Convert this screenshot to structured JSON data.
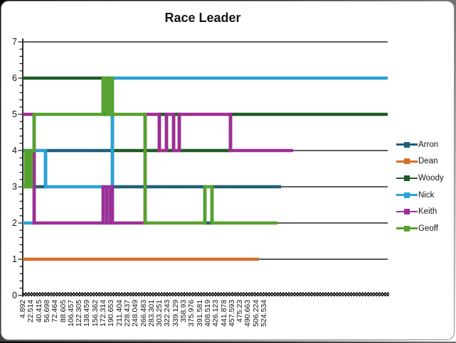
{
  "chart_data": {
    "type": "line",
    "title": "Race Leader",
    "xlabel": "",
    "ylabel": "",
    "ylim": [
      0,
      7
    ],
    "y_ticks": [
      0,
      1,
      2,
      3,
      4,
      5,
      6,
      7
    ],
    "grid": false,
    "legend_position": "right",
    "x_tick_labels": [
      "4.892",
      "22.514",
      "40.415",
      "56.698",
      "72.464",
      "88.605",
      "106.457",
      "122.305",
      "138.459",
      "156.362",
      "172.314",
      "190.653",
      "211.404",
      "228.437",
      "248.049",
      "266.483",
      "283.301",
      "303.251",
      "322.243",
      "339.129",
      "358.93",
      "375.976",
      "391.581",
      "408.519",
      "426.123",
      "441.878",
      "457.593",
      "475.23",
      "490.663",
      "506.224",
      "524.534"
    ],
    "x_domain_s": [
      0,
      513
    ],
    "axis_color": "#1a1a1a",
    "series": [
      {
        "name": "Arron",
        "color": "#20607A",
        "steps": [
          [
            0,
            4
          ],
          [
            4,
            3
          ],
          [
            8,
            4
          ],
          [
            12,
            3
          ],
          [
            32,
            4
          ],
          [
            126,
            3
          ],
          [
            256,
            2
          ],
          [
            266,
            3
          ]
        ],
        "x_end": 363
      },
      {
        "name": "Dean",
        "color": "#D4702A",
        "steps": [
          [
            0,
            1
          ]
        ],
        "x_end": 332
      },
      {
        "name": "Woody",
        "color": "#1E5B24",
        "steps": [
          [
            0,
            6
          ],
          [
            113,
            5
          ],
          [
            118,
            6
          ],
          [
            123,
            5
          ],
          [
            126,
            4
          ],
          [
            192,
            5
          ],
          [
            202,
            4
          ],
          [
            212,
            5
          ],
          [
            220,
            4
          ],
          [
            292,
            5
          ]
        ],
        "x_end": 513
      },
      {
        "name": "Nick",
        "color": "#2AA2D8",
        "steps": [
          [
            0,
            2
          ],
          [
            16,
            4
          ],
          [
            32,
            3
          ],
          [
            113,
            2
          ],
          [
            118,
            3
          ],
          [
            123,
            2
          ],
          [
            126,
            6
          ]
        ],
        "x_end": 513
      },
      {
        "name": "Keith",
        "color": "#9F2D96",
        "steps": [
          [
            0,
            5
          ],
          [
            16,
            2
          ],
          [
            113,
            3
          ],
          [
            118,
            2
          ],
          [
            123,
            3
          ],
          [
            126,
            2
          ],
          [
            172,
            5
          ],
          [
            192,
            4
          ],
          [
            202,
            5
          ],
          [
            212,
            4
          ],
          [
            220,
            5
          ],
          [
            292,
            4
          ]
        ],
        "x_end": 380
      },
      {
        "name": "Geoff",
        "color": "#56A22F",
        "steps": [
          [
            0,
            3
          ],
          [
            4,
            4
          ],
          [
            8,
            3
          ],
          [
            12,
            4
          ],
          [
            16,
            5
          ],
          [
            113,
            6
          ],
          [
            118,
            5
          ],
          [
            123,
            6
          ],
          [
            126,
            5
          ],
          [
            172,
            2
          ],
          [
            256,
            3
          ],
          [
            266,
            2
          ]
        ],
        "x_end": 358
      }
    ],
    "post_finish_lines": [
      {
        "y": 1,
        "x_from": 332,
        "x_to": 513
      },
      {
        "y": 2,
        "x_from": 358,
        "x_to": 513
      },
      {
        "y": 3,
        "x_from": 363,
        "x_to": 513
      },
      {
        "y": 4,
        "x_from": 380,
        "x_to": 513
      },
      {
        "y": 7,
        "x_from": 0,
        "x_to": 513
      }
    ]
  },
  "legend": {
    "items": [
      {
        "label": "Arron",
        "color": "#20607A"
      },
      {
        "label": "Dean",
        "color": "#D4702A"
      },
      {
        "label": "Woody",
        "color": "#1E5B24"
      },
      {
        "label": "Nick",
        "color": "#2AA2D8"
      },
      {
        "label": "Keith",
        "color": "#9F2D96"
      },
      {
        "label": "Geoff",
        "color": "#56A22F"
      }
    ]
  }
}
